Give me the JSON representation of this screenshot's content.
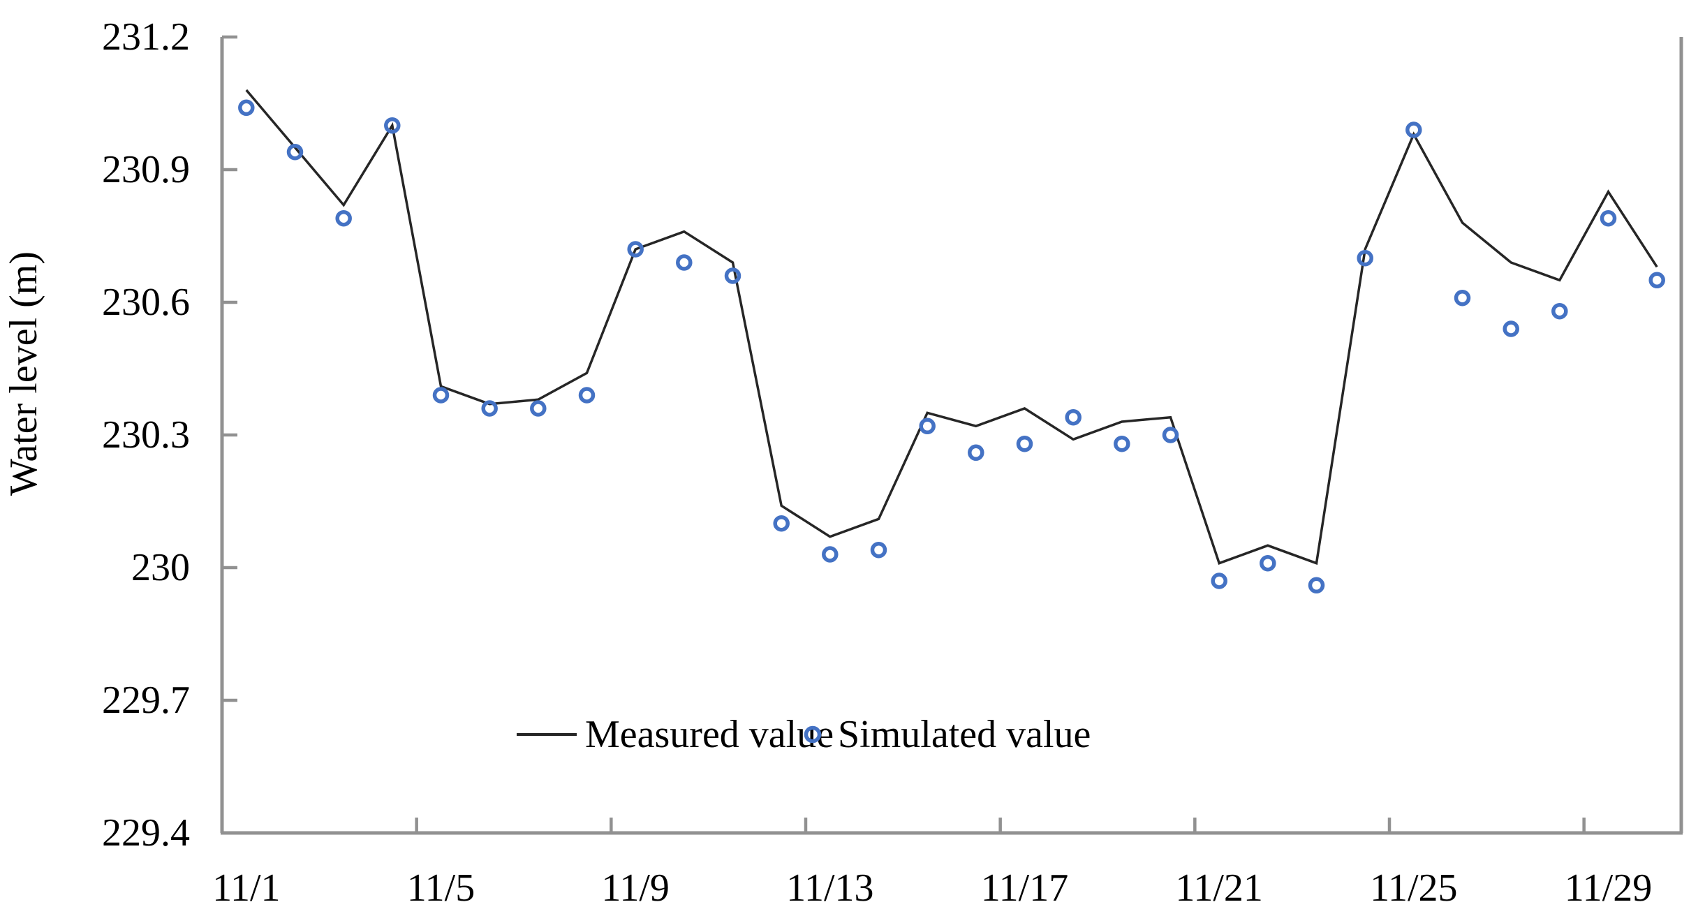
{
  "chart_data": {
    "type": "line",
    "title": "",
    "xlabel": "",
    "ylabel": "Water level (m)",
    "ylim": [
      229.4,
      231.2
    ],
    "grid": false,
    "y_ticks": [
      229.4,
      229.7,
      230.0,
      230.3,
      230.6,
      230.9,
      231.2
    ],
    "y_tick_labels": [
      "229.4",
      "229.7",
      "230",
      "230.3",
      "230.6",
      "230.9",
      "231.2"
    ],
    "x_categories": [
      "11/1",
      "11/2",
      "11/3",
      "11/4",
      "11/5",
      "11/6",
      "11/7",
      "11/8",
      "11/9",
      "11/10",
      "11/11",
      "11/12",
      "11/13",
      "11/14",
      "11/15",
      "11/16",
      "11/17",
      "11/18",
      "11/19",
      "11/20",
      "11/21",
      "11/22",
      "11/23",
      "11/24",
      "11/25",
      "11/26",
      "11/27",
      "11/28",
      "11/29",
      "11/30"
    ],
    "x_tick_label_days": [
      1,
      5,
      9,
      13,
      17,
      21,
      25,
      29
    ],
    "x_tick_labels_shown": [
      "11/1",
      "11/5",
      "11/9",
      "11/13",
      "11/17",
      "11/21",
      "11/25",
      "11/29"
    ],
    "x_boundary_tick_interval": 4,
    "series": [
      {
        "name": "Measured value",
        "type": "line",
        "color": "#262626",
        "values": [
          231.08,
          230.95,
          230.82,
          231.0,
          230.41,
          230.37,
          230.38,
          230.44,
          230.72,
          230.76,
          230.69,
          230.14,
          230.07,
          230.11,
          230.35,
          230.32,
          230.36,
          230.29,
          230.33,
          230.34,
          230.01,
          230.05,
          230.01,
          230.72,
          230.98,
          230.78,
          230.69,
          230.65,
          230.85,
          230.68
        ]
      },
      {
        "name": "Simulated value",
        "type": "scatter",
        "color": "#4472c4",
        "values": [
          231.04,
          230.94,
          230.79,
          231.0,
          230.39,
          230.36,
          230.36,
          230.39,
          230.72,
          230.69,
          230.66,
          230.1,
          230.03,
          230.04,
          230.32,
          230.26,
          230.28,
          230.34,
          230.28,
          230.3,
          229.97,
          230.01,
          229.96,
          230.7,
          230.99,
          230.61,
          230.54,
          230.58,
          230.79,
          230.65
        ]
      }
    ],
    "legend": {
      "position": "inside-bottom-center",
      "entries": [
        {
          "label": "Measured value",
          "marker": "line"
        },
        {
          "label": "Simulated value",
          "marker": "circle"
        }
      ]
    },
    "axis_color": "#919191"
  }
}
